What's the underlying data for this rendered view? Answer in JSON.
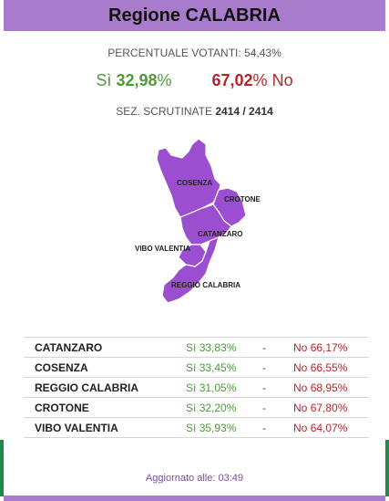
{
  "header": {
    "title": "Regione CALABRIA"
  },
  "turnout": {
    "label": "PERCENTUALE VOTANTI:",
    "value": "54,43%"
  },
  "result": {
    "yes_label": "Sì",
    "yes_value": "32,98",
    "yes_unit": "%",
    "no_value": "67,02",
    "no_unit": "%",
    "no_label": "No"
  },
  "sections": {
    "label": "SEZ. SCRUTINATE",
    "value": "2414 / 2414"
  },
  "map": {
    "fill_color": "#9b4fd0",
    "labels": [
      "COSENZA",
      "CROTONE",
      "CATANZARO",
      "VIBO VALENTIA",
      "REGGIO CALABRIA"
    ]
  },
  "provinces": [
    {
      "name": "CATANZARO",
      "yes_label": "Sì",
      "yes": "33,83%",
      "sep": "-",
      "no_label": "No",
      "no": "66,17%"
    },
    {
      "name": "COSENZA",
      "yes_label": "Sì",
      "yes": "33,45%",
      "sep": "-",
      "no_label": "No",
      "no": "66,55%"
    },
    {
      "name": "REGGIO CALABRIA",
      "yes_label": "Sì",
      "yes": "31,05%",
      "sep": "-",
      "no_label": "No",
      "no": "68,95%"
    },
    {
      "name": "CROTONE",
      "yes_label": "Sì",
      "yes": "32,20%",
      "sep": "-",
      "no_label": "No",
      "no": "67,80%"
    },
    {
      "name": "VIBO VALENTIA",
      "yes_label": "Sì",
      "yes": "35,93%",
      "sep": "-",
      "no_label": "No",
      "no": "64,07%"
    }
  ],
  "updated": {
    "label": "Aggiornato alle:",
    "time": "03:49"
  },
  "colors": {
    "accent": "#a97bcc",
    "yes": "#4e9a3a",
    "no": "#b3262b",
    "side": "#1f8a4c"
  }
}
